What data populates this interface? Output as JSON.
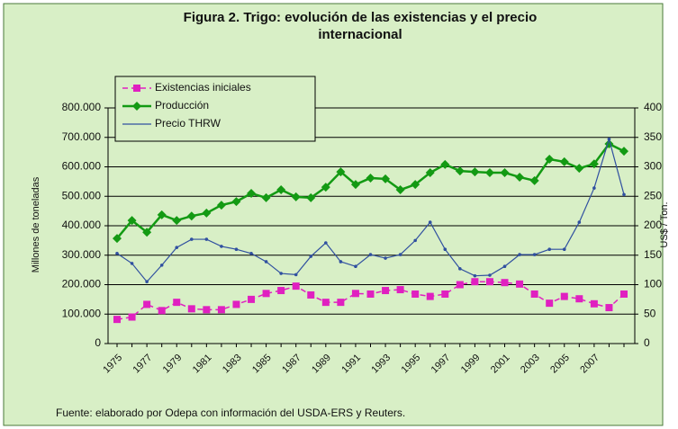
{
  "chart_data": {
    "type": "line",
    "title": "Figura 2. Trigo: evolución de las existencias y el precio internacional",
    "ylabel": "Millones de toneladas",
    "y2label": "US$ / Ton.",
    "source": "Fuente: elaborado por Odepa con información del USDA-ERS y Reuters.",
    "categories": [
      "1975",
      null,
      "1977",
      null,
      "1979",
      null,
      "1981",
      null,
      "1983",
      null,
      "1985",
      null,
      "1987",
      null,
      "1989",
      null,
      "1991",
      null,
      "1993",
      null,
      "1995",
      null,
      "1997",
      null,
      "1999",
      null,
      "2001",
      null,
      "2003",
      null,
      "2005",
      null,
      "2007",
      null,
      null
    ],
    "ylim": [
      0,
      800000
    ],
    "yticks": [
      0,
      {
        "value": 100000,
        "label": "100.000"
      },
      {
        "value": 200000,
        "label": "200.000"
      },
      {
        "value": 300000,
        "label": "300.000"
      },
      {
        "value": 400000,
        "label": "400.000"
      },
      {
        "value": 500000,
        "label": "500.000"
      },
      {
        "value": 600000,
        "label": "600.000"
      },
      {
        "value": 700000,
        "label": "700.000"
      },
      {
        "value": 800000,
        "label": "800.000"
      }
    ],
    "y2lim": [
      0,
      400
    ],
    "y2ticks": [
      0,
      50,
      100,
      150,
      200,
      250,
      300,
      350,
      400
    ],
    "grid": true,
    "legend": "top-left",
    "series": [
      {
        "name": "Existencias iniciales",
        "color": "#e020c0",
        "values": [
          82000,
          90000,
          133000,
          112000,
          140000,
          118000,
          115000,
          115000,
          133000,
          150000,
          170000,
          180000,
          195000,
          165000,
          140000,
          140000,
          170000,
          168000,
          180000,
          183000,
          168000,
          160000,
          168000,
          200000,
          210000,
          210000,
          207000,
          202000,
          168000,
          137000,
          160000,
          152000,
          135000,
          122000,
          168000
        ]
      },
      {
        "name": "Producción",
        "color": "#139a13",
        "values": [
          357000,
          418000,
          378000,
          437000,
          418000,
          433000,
          443000,
          470000,
          482000,
          510000,
          495000,
          522000,
          498000,
          495000,
          531000,
          583000,
          540000,
          562000,
          559000,
          522000,
          540000,
          580000,
          608000,
          586000,
          583000,
          580000,
          580000,
          565000,
          553000,
          626000,
          617000,
          595000,
          610000,
          678000,
          653000
        ]
      },
      {
        "name": "Precio THRW",
        "color": "#3050a0",
        "axis": "y2",
        "values": [
          153,
          136,
          105,
          133,
          163,
          177,
          177,
          165,
          160,
          153,
          139,
          119,
          117,
          148,
          171,
          139,
          131,
          151,
          145,
          151,
          175,
          206,
          160,
          127,
          115,
          116,
          131,
          151,
          151,
          160,
          160,
          206,
          264,
          347,
          253
        ]
      }
    ]
  }
}
